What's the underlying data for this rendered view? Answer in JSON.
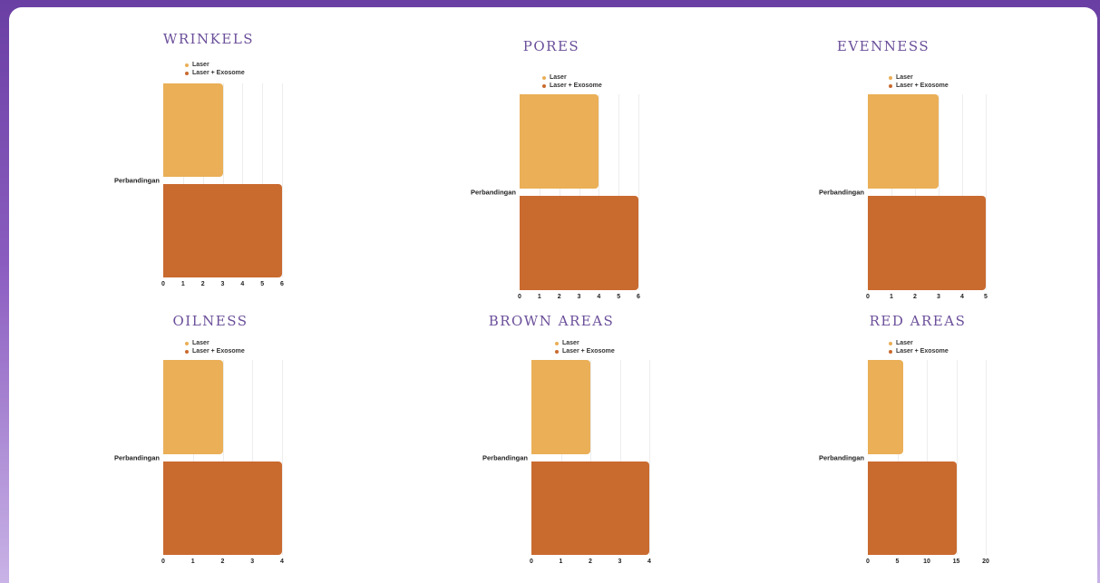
{
  "colors": {
    "laser": "#eaaf57",
    "combo": "#c96a2f",
    "title": "#6b4f9a"
  },
  "chart_data": [
    {
      "type": "bar",
      "orientation": "horizontal",
      "title": "WRINKELS",
      "categories": [
        "Perbandingan"
      ],
      "xlim": [
        0,
        6
      ],
      "ticks": [
        0,
        1,
        2,
        3,
        4,
        5,
        6
      ],
      "legend_position": "top",
      "series": [
        {
          "name": "Laser",
          "values": [
            3
          ]
        },
        {
          "name": "Laser + Exosome",
          "values": [
            6
          ]
        }
      ]
    },
    {
      "type": "bar",
      "orientation": "horizontal",
      "title": "PORES",
      "categories": [
        "Perbandingan"
      ],
      "xlim": [
        0,
        6
      ],
      "ticks": [
        0,
        1,
        2,
        3,
        4,
        5,
        6
      ],
      "legend_position": "top",
      "series": [
        {
          "name": "Laser",
          "values": [
            4
          ]
        },
        {
          "name": "Laser + Exosome",
          "values": [
            6
          ]
        }
      ]
    },
    {
      "type": "bar",
      "orientation": "horizontal",
      "title": "EVENNESS",
      "categories": [
        "Perbandingan"
      ],
      "xlim": [
        0,
        5
      ],
      "ticks": [
        0,
        1,
        2,
        3,
        4,
        5
      ],
      "legend_position": "top",
      "series": [
        {
          "name": "Laser",
          "values": [
            3
          ]
        },
        {
          "name": "Laser + Exosome",
          "values": [
            5
          ]
        }
      ]
    },
    {
      "type": "bar",
      "orientation": "horizontal",
      "title": "OILNESS",
      "categories": [
        "Perbandingan"
      ],
      "xlim": [
        0,
        4
      ],
      "ticks": [
        0,
        1,
        2,
        3,
        4
      ],
      "legend_position": "top",
      "series": [
        {
          "name": "Laser",
          "values": [
            2
          ]
        },
        {
          "name": "Laser + Exosome",
          "values": [
            4
          ]
        }
      ]
    },
    {
      "type": "bar",
      "orientation": "horizontal",
      "title": "BROWN AREAS",
      "categories": [
        "Perbandingan"
      ],
      "xlim": [
        0,
        4
      ],
      "ticks": [
        0,
        1,
        2,
        3,
        4
      ],
      "legend_position": "top",
      "series": [
        {
          "name": "Laser",
          "values": [
            2
          ]
        },
        {
          "name": "Laser + Exosome",
          "values": [
            4
          ]
        }
      ]
    },
    {
      "type": "bar",
      "orientation": "horizontal",
      "title": "RED AREAS",
      "categories": [
        "Perbandingan"
      ],
      "xlim": [
        0,
        20
      ],
      "ticks": [
        0,
        5,
        10,
        15,
        20
      ],
      "legend_position": "top",
      "series": [
        {
          "name": "Laser",
          "values": [
            6
          ]
        },
        {
          "name": "Laser + Exosome",
          "values": [
            15
          ]
        }
      ]
    }
  ]
}
